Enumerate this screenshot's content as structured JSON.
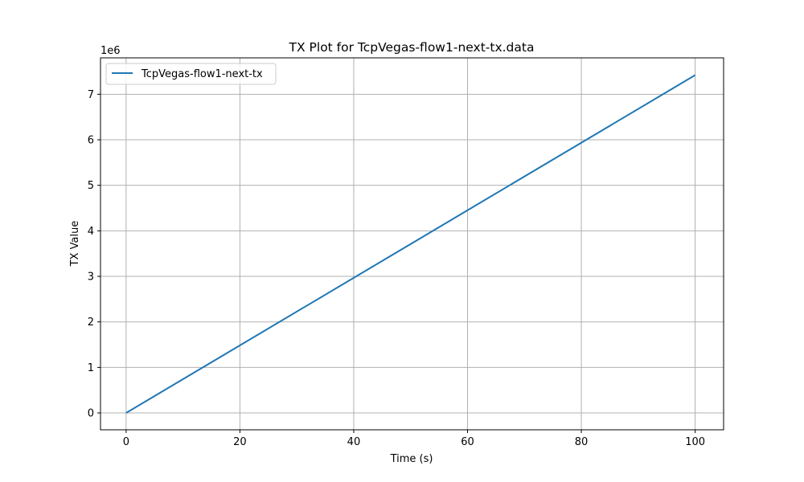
{
  "chart_data": {
    "type": "line",
    "title": "TX Plot for TcpVegas-flow1-next-tx.data",
    "xlabel": "Time (s)",
    "ylabel": "TX Value",
    "y_offset_label": "1e6",
    "xlim": [
      -4.5,
      105
    ],
    "ylim": [
      -0.37,
      7.8
    ],
    "x_ticks": [
      0,
      20,
      40,
      60,
      80,
      100
    ],
    "y_ticks": [
      0,
      1,
      2,
      3,
      4,
      5,
      6,
      7
    ],
    "grid": true,
    "legend_position": "upper-left",
    "series": [
      {
        "name": "TcpVegas-flow1-next-tx",
        "color": "#1f77b4",
        "x": [
          0,
          100
        ],
        "y": [
          0,
          7.42
        ]
      }
    ]
  }
}
